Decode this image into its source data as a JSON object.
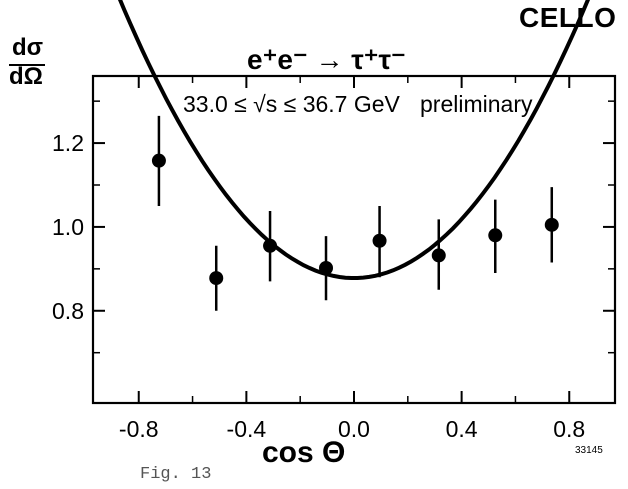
{
  "chart_data": {
    "type": "scatter",
    "experiment": "CELLO",
    "ylabel": {
      "numerator": "dσ",
      "denominator": "dΩ"
    },
    "xlabel": "cos Θ",
    "annotations": {
      "reaction": "e⁺e⁻ → τ⁺τ⁻",
      "energy_range": "33.0 ≤ √s ≤ 36.7 GeV",
      "status": "preliminary"
    },
    "figure_label": "Fig. 13",
    "figure_id": "33145",
    "xlim": [
      -0.97,
      0.97
    ],
    "ylim": [
      0.58,
      1.36
    ],
    "xticks": [
      -0.8,
      -0.4,
      0.0,
      0.4,
      0.8
    ],
    "xtick_labels": [
      "-0.8",
      "-0.4",
      "0.0",
      "0.4",
      "0.8"
    ],
    "yticks": [
      0.8,
      1.0,
      1.2
    ],
    "ytick_labels": [
      "0.8",
      "1.0",
      "1.2"
    ],
    "grid": false,
    "series": [
      {
        "points": [
          {
            "x": -0.725,
            "y": 1.158,
            "yerr_low": 1.05,
            "yerr_high": 1.265
          },
          {
            "x": -0.512,
            "y": 0.878,
            "yerr_low": 0.8,
            "yerr_high": 0.955
          },
          {
            "x": -0.312,
            "y": 0.955,
            "yerr_low": 0.87,
            "yerr_high": 1.038
          },
          {
            "x": -0.104,
            "y": 0.902,
            "yerr_low": 0.825,
            "yerr_high": 0.978
          },
          {
            "x": 0.095,
            "y": 0.967,
            "yerr_low": 0.88,
            "yerr_high": 1.05
          },
          {
            "x": 0.315,
            "y": 0.932,
            "yerr_low": 0.85,
            "yerr_high": 1.018
          },
          {
            "x": 0.525,
            "y": 0.98,
            "yerr_low": 0.89,
            "yerr_high": 1.065
          },
          {
            "x": 0.735,
            "y": 1.005,
            "yerr_low": 0.915,
            "yerr_high": 1.095
          }
        ]
      },
      {
        "type": "line",
        "curve": "a*(1+cos^2 θ)",
        "a": 0.878,
        "x_range": [
          -0.875,
          0.9
        ]
      }
    ]
  }
}
